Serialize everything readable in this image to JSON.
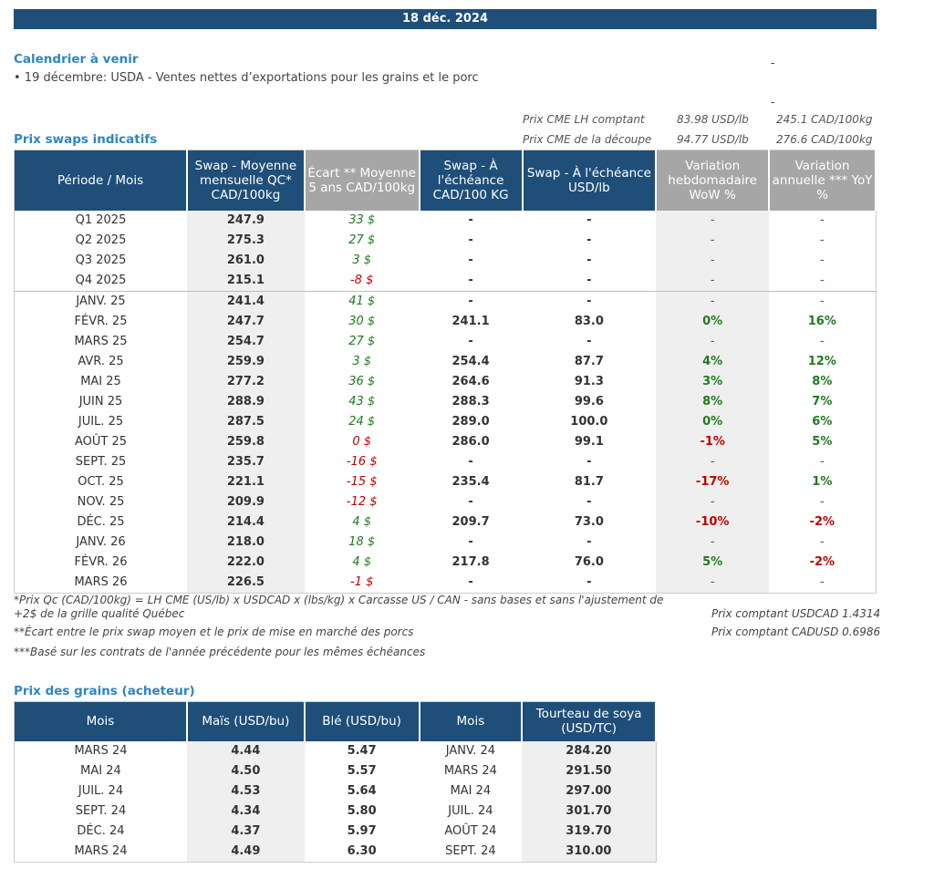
{
  "banner_date": "18 déc. 2024",
  "calendar": {
    "title": "Calendrier à venir",
    "item": "• 19 décembre: USDA - Ventes nettes d’exportations pour les grains et le porc",
    "dash1": "-",
    "dash2": "-"
  },
  "swaps_title": "Prix swaps indicatifs",
  "cme": [
    {
      "label": "Prix CME LH comptant",
      "usd": "83.98 USD/lb",
      "cad": "245.1 CAD/100kg"
    },
    {
      "label": "Prix CME de la découpe",
      "usd": "94.77 USD/lb",
      "cad": "276.6 CAD/100kg"
    }
  ],
  "swap_headers": [
    "Période / Mois",
    "Swap - Moyenne mensuelle QC* CAD/100kg",
    "Écart ** Moyenne 5 ans CAD/100kg",
    "Swap - À l'échéance CAD/100 KG",
    "Swap - À l'échéance USD/lb",
    "Variation hebdomadaire WoW %",
    "Variation annuelle *** YoY %"
  ],
  "swap_rows": [
    {
      "p": "Q1 2025",
      "m": "247.9",
      "e": "33 $",
      "c": "-",
      "u": "-",
      "w": "-",
      "y": "-"
    },
    {
      "p": "Q2 2025",
      "m": "275.3",
      "e": "27 $",
      "c": "-",
      "u": "-",
      "w": "-",
      "y": "-"
    },
    {
      "p": "Q3 2025",
      "m": "261.0",
      "e": "3 $",
      "c": "-",
      "u": "-",
      "w": "-",
      "y": "-"
    },
    {
      "p": "Q4 2025",
      "m": "215.1",
      "e": "-8 $",
      "c": "-",
      "u": "-",
      "w": "-",
      "y": "-"
    },
    {
      "p": "JANV. 25",
      "m": "241.4",
      "e": "41 $",
      "c": "-",
      "u": "-",
      "w": "-",
      "y": "-"
    },
    {
      "p": "FÉVR. 25",
      "m": "247.7",
      "e": "30 $",
      "c": "241.1",
      "u": "83.0",
      "w": "0%",
      "y": "16%"
    },
    {
      "p": "MARS 25",
      "m": "254.7",
      "e": "27 $",
      "c": "-",
      "u": "-",
      "w": "-",
      "y": "-"
    },
    {
      "p": "AVR. 25",
      "m": "259.9",
      "e": "3 $",
      "c": "254.4",
      "u": "87.7",
      "w": "4%",
      "y": "12%"
    },
    {
      "p": "MAI 25",
      "m": "277.2",
      "e": "36 $",
      "c": "264.6",
      "u": "91.3",
      "w": "3%",
      "y": "8%"
    },
    {
      "p": "JUIN 25",
      "m": "288.9",
      "e": "43 $",
      "c": "288.3",
      "u": "99.6",
      "w": "8%",
      "y": "7%"
    },
    {
      "p": "JUIL. 25",
      "m": "287.5",
      "e": "24 $",
      "c": "289.0",
      "u": "100.0",
      "w": "0%",
      "y": "6%"
    },
    {
      "p": "AOÛT 25",
      "m": "259.8",
      "e": "0 $",
      "c": "286.0",
      "u": "99.1",
      "w": "-1%",
      "y": "5%"
    },
    {
      "p": "SEPT. 25",
      "m": "235.7",
      "e": "-16 $",
      "c": "-",
      "u": "-",
      "w": "-",
      "y": "-"
    },
    {
      "p": "OCT. 25",
      "m": "221.1",
      "e": "-15 $",
      "c": "235.4",
      "u": "81.7",
      "w": "-17%",
      "y": "1%"
    },
    {
      "p": "NOV. 25",
      "m": "209.9",
      "e": "-12 $",
      "c": "-",
      "u": "-",
      "w": "-",
      "y": "-"
    },
    {
      "p": "DÉC. 25",
      "m": "214.4",
      "e": "4 $",
      "c": "209.7",
      "u": "73.0",
      "w": "-10%",
      "y": "-2%"
    },
    {
      "p": "JANV. 26",
      "m": "218.0",
      "e": "18 $",
      "c": "-",
      "u": "-",
      "w": "-",
      "y": "-"
    },
    {
      "p": "FÉVR. 26",
      "m": "222.0",
      "e": "4 $",
      "c": "217.8",
      "u": "76.0",
      "w": "5%",
      "y": "-2%"
    },
    {
      "p": "MARS 26",
      "m": "226.5",
      "e": "-1 $",
      "c": "-",
      "u": "-",
      "w": "-",
      "y": "-"
    }
  ],
  "notes": {
    "n1a": "*Prix Qc (CAD/100kg) = LH CME (US/lb) x USDCAD x (lbs/kg) x Carcasse US / CAN - sans bases et sans l'ajustement de",
    "n1b": "+2$ de la grille qualité Québec",
    "n2": "**Écart entre le prix swap moyen et le prix de mise en marché des porcs",
    "n3": "***Basé sur les contrats de l'année précédente pour les mêmes échéances",
    "fx1": "Prix comptant USDCAD 1.4314",
    "fx2": "Prix comptant CADUSD 0.6986"
  },
  "grains_title": "Prix des grains (acheteur)",
  "grain_headers": [
    "Mois",
    "Maïs (USD/bu)",
    "Blé (USD/bu)",
    "Mois",
    "Tourteau de soya (USD/TC)"
  ],
  "grain_rows": [
    {
      "m1": "MARS 24",
      "mais": "4.44",
      "ble": "5.47",
      "m2": "JANV. 24",
      "soya": "284.20"
    },
    {
      "m1": "MAI 24",
      "mais": "4.50",
      "ble": "5.57",
      "m2": "MARS 24",
      "soya": "291.50"
    },
    {
      "m1": "JUIL. 24",
      "mais": "4.53",
      "ble": "5.64",
      "m2": "MAI 24",
      "soya": "297.00"
    },
    {
      "m1": "SEPT. 24",
      "mais": "4.34",
      "ble": "5.80",
      "m2": "JUIL. 24",
      "soya": "301.70"
    },
    {
      "m1": "DÉC. 24",
      "mais": "4.37",
      "ble": "5.97",
      "m2": "AOÛT 24",
      "soya": "319.70"
    },
    {
      "m1": "MARS 24",
      "mais": "4.49",
      "ble": "6.30",
      "m2": "SEPT. 24",
      "soya": "310.00"
    }
  ],
  "colors": {
    "header_blue": "#1f4e79",
    "header_gray": "#a6a6a6",
    "title_blue": "#2e86c1",
    "positive": "#1e7b1e",
    "negative": "#c00000"
  }
}
